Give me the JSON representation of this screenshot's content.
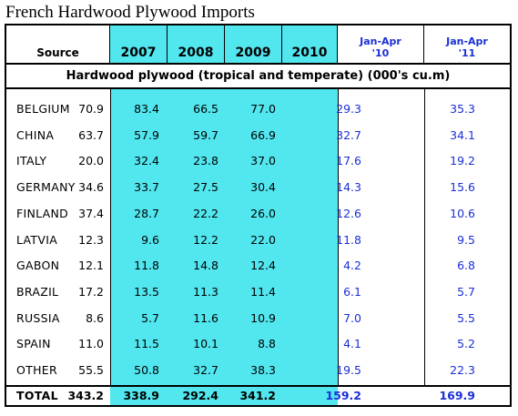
{
  "title": "French Hardwood Plywood Imports",
  "chart_data": {
    "type": "table",
    "title": "French Hardwood Plywood Imports",
    "subtitle": "Hardwood plywood (tropical and temperate) (000's cu.m)",
    "columns": [
      "Source",
      "2007",
      "2008",
      "2009",
      "2010",
      "Jan-Apr\n'10",
      "Jan-Apr\n'11"
    ],
    "rows": [
      {
        "source": "BELGIUM",
        "values": [
          "70.9",
          "83.4",
          "66.5",
          "77.0",
          "29.3",
          "35.3"
        ]
      },
      {
        "source": "CHINA",
        "values": [
          "63.7",
          "57.9",
          "59.7",
          "66.9",
          "32.7",
          "34.1"
        ]
      },
      {
        "source": "ITALY",
        "values": [
          "20.0",
          "32.4",
          "23.8",
          "37.0",
          "17.6",
          "19.2"
        ]
      },
      {
        "source": "GERMANY",
        "values": [
          "34.6",
          "33.7",
          "27.5",
          "30.4",
          "14.3",
          "15.6"
        ]
      },
      {
        "source": "FINLAND",
        "values": [
          "37.4",
          "28.7",
          "22.2",
          "26.0",
          "12.6",
          "10.6"
        ]
      },
      {
        "source": "LATVIA",
        "values": [
          "12.3",
          "9.6",
          "12.2",
          "22.0",
          "11.8",
          "9.5"
        ]
      },
      {
        "source": "GABON",
        "values": [
          "12.1",
          "11.8",
          "14.8",
          "12.4",
          "4.2",
          "6.8"
        ]
      },
      {
        "source": "BRAZIL",
        "values": [
          "17.2",
          "13.5",
          "11.3",
          "11.4",
          "6.1",
          "5.7"
        ]
      },
      {
        "source": "RUSSIA",
        "values": [
          "8.6",
          "5.7",
          "11.6",
          "10.9",
          "7.0",
          "5.5"
        ]
      },
      {
        "source": "SPAIN",
        "values": [
          "11.0",
          "11.5",
          "10.1",
          "8.8",
          "4.1",
          "5.2"
        ]
      },
      {
        "source": "OTHER",
        "values": [
          "55.5",
          "50.8",
          "32.7",
          "38.3",
          "19.5",
          "22.3"
        ]
      }
    ],
    "total": {
      "source": "TOTAL",
      "values": [
        "343.2",
        "338.9",
        "292.4",
        "341.2",
        "159.2",
        "169.9"
      ]
    }
  },
  "colors": {
    "year_band": "#52e6ef",
    "ytd_text": "#1a2fd6",
    "text": "#000000",
    "border": "#000000"
  }
}
